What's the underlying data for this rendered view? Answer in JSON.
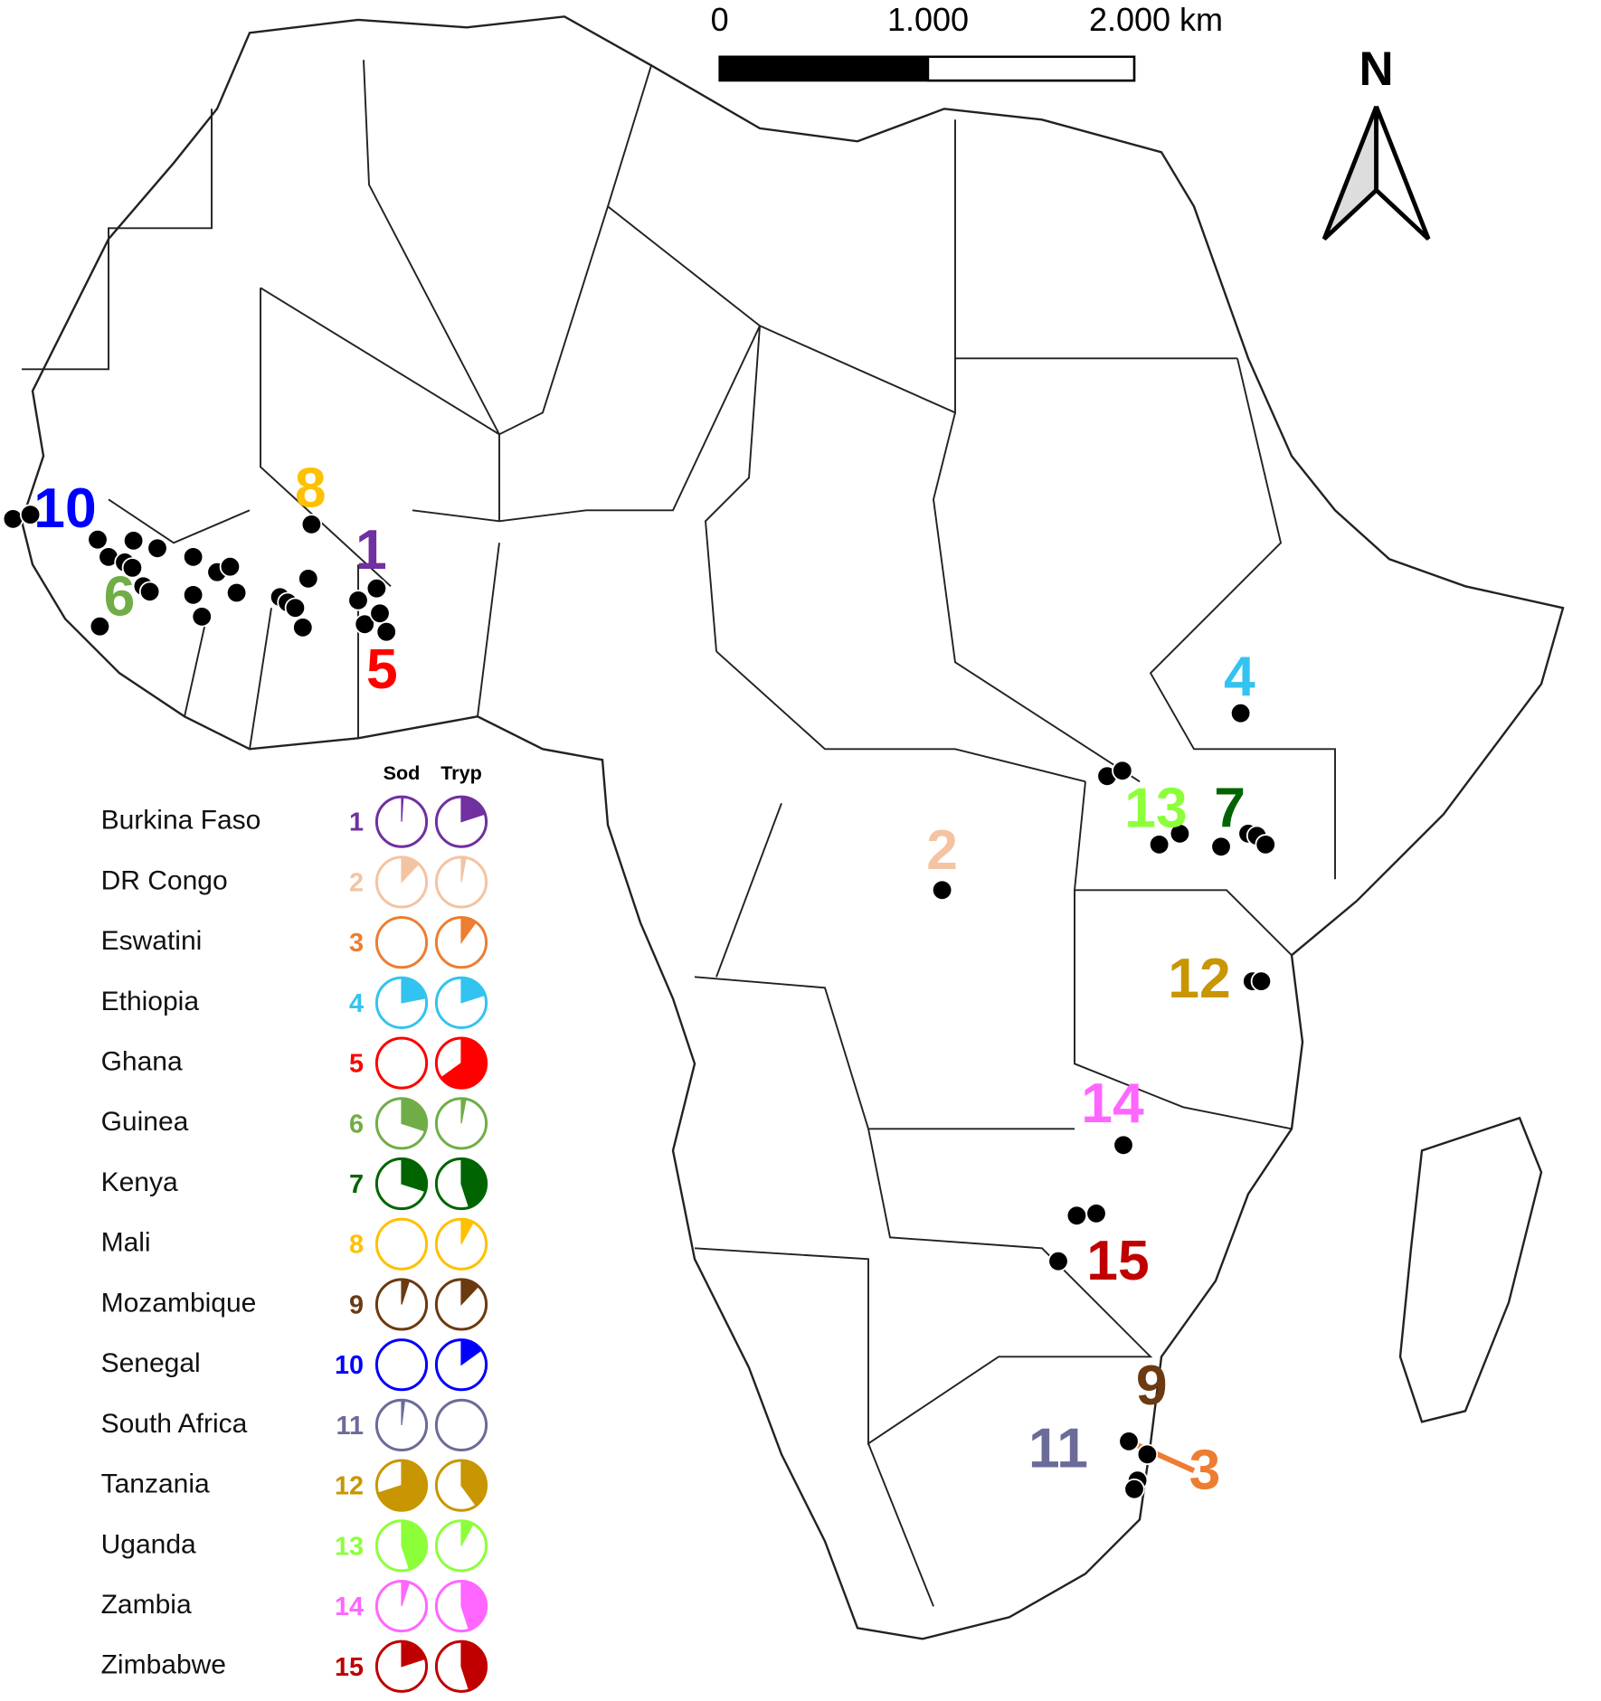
{
  "scale_bar": {
    "labels": [
      "0",
      "1.000",
      "2.000 km"
    ]
  },
  "north": "N",
  "legend": {
    "headers": [
      "Sod",
      "Tryp"
    ],
    "rows": [
      {
        "country": "Burkina Faso",
        "number": 1,
        "color": "#7030a0",
        "sod": 1,
        "tryp": 20
      },
      {
        "country": "DR Congo",
        "number": 2,
        "color": "#f4c3a2",
        "sod": 12,
        "tryp": 3
      },
      {
        "country": "Eswatini",
        "number": 3,
        "color": "#ed7d31",
        "sod": 0,
        "tryp": 10
      },
      {
        "country": "Ethiopia",
        "number": 4,
        "color": "#33c3f0",
        "sod": 22,
        "tryp": 20
      },
      {
        "country": "Ghana",
        "number": 5,
        "color": "#ff0000",
        "sod": 0,
        "tryp": 65
      },
      {
        "country": "Guinea",
        "number": 6,
        "color": "#70ad47",
        "sod": 30,
        "tryp": 3
      },
      {
        "country": "Kenya",
        "number": 7,
        "color": "#006400",
        "sod": 30,
        "tryp": 45
      },
      {
        "country": "Mali",
        "number": 8,
        "color": "#ffc000",
        "sod": 0,
        "tryp": 8
      },
      {
        "country": "Mozambique",
        "number": 9,
        "color": "#6b3a10",
        "sod": 5,
        "tryp": 12
      },
      {
        "country": "Senegal",
        "number": 10,
        "color": "#0000ff",
        "sod": 0,
        "tryp": 15
      },
      {
        "country": "South Africa",
        "number": 11,
        "color": "#6b6b9a",
        "sod": 2,
        "tryp": 0
      },
      {
        "country": "Tanzania",
        "number": 12,
        "color": "#c89600",
        "sod": 70,
        "tryp": 40
      },
      {
        "country": "Uganda",
        "number": 13,
        "color": "#8cff3a",
        "sod": 45,
        "tryp": 8
      },
      {
        "country": "Zambia",
        "number": 14,
        "color": "#ff66ff",
        "sod": 5,
        "tryp": 45
      },
      {
        "country": "Zimbabwe",
        "number": 15,
        "color": "#c00000",
        "sod": 20,
        "tryp": 45
      }
    ]
  }
}
